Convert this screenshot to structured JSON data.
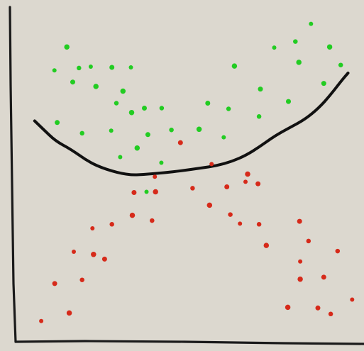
{
  "chart_data": {
    "type": "scatter",
    "title": "",
    "xlabel": "",
    "ylabel": "",
    "grid": false,
    "legend": "none",
    "xlim": [
      0,
      100
    ],
    "ylim": [
      0,
      100
    ],
    "colors": {
      "background": "#dcd8cf",
      "axes": "#1a1a1a",
      "boundary": "#111111",
      "class_a": "#22cc22",
      "class_b": "#d62a1a"
    },
    "series": [
      {
        "class": "class_a",
        "points": [
          [
            11.2,
            81.1
          ],
          [
            14.8,
            88.1
          ],
          [
            16.5,
            77.6
          ],
          [
            18.3,
            81.8
          ],
          [
            21.7,
            82.2
          ],
          [
            23.2,
            76.3
          ],
          [
            27.8,
            82.0
          ],
          [
            29.1,
            71.3
          ],
          [
            33.3,
            82.0
          ],
          [
            31.0,
            74.9
          ],
          [
            12.0,
            65.5
          ],
          [
            19.2,
            62.3
          ],
          [
            27.6,
            63.1
          ],
          [
            33.5,
            68.5
          ],
          [
            37.2,
            69.8
          ],
          [
            42.2,
            69.8
          ],
          [
            30.2,
            55.2
          ],
          [
            35.1,
            57.9
          ],
          [
            38.2,
            61.9
          ],
          [
            45.0,
            63.3
          ],
          [
            42.1,
            53.5
          ],
          [
            53.0,
            63.5
          ],
          [
            55.5,
            71.3
          ],
          [
            61.5,
            69.6
          ],
          [
            60.1,
            61.1
          ],
          [
            63.2,
            82.4
          ],
          [
            70.7,
            75.5
          ],
          [
            70.3,
            67.3
          ],
          [
            74.7,
            87.9
          ],
          [
            81.8,
            83.5
          ],
          [
            78.8,
            71.8
          ],
          [
            80.8,
            89.7
          ],
          [
            85.3,
            95.0
          ],
          [
            90.7,
            88.1
          ],
          [
            89.0,
            77.2
          ],
          [
            93.9,
            82.7
          ],
          [
            37.8,
            44.8
          ]
        ]
      },
      {
        "class": "class_b",
        "points": [
          [
            7.4,
            6.2
          ],
          [
            15.5,
            8.6
          ],
          [
            11.3,
            17.4
          ],
          [
            19.2,
            18.5
          ],
          [
            16.8,
            26.9
          ],
          [
            22.5,
            26.1
          ],
          [
            25.7,
            24.7
          ],
          [
            27.8,
            35.1
          ],
          [
            22.2,
            33.9
          ],
          [
            33.7,
            37.8
          ],
          [
            34.2,
            44.6
          ],
          [
            39.4,
            36.2
          ],
          [
            40.2,
            49.3
          ],
          [
            40.4,
            44.8
          ],
          [
            47.6,
            59.5
          ],
          [
            51.1,
            45.9
          ],
          [
            56.6,
            53.1
          ],
          [
            56.0,
            40.8
          ],
          [
            61.0,
            46.3
          ],
          [
            62.0,
            38.0
          ],
          [
            66.4,
            47.8
          ],
          [
            67.0,
            50.1
          ],
          [
            70.0,
            47.2
          ],
          [
            70.3,
            35.1
          ],
          [
            64.8,
            35.3
          ],
          [
            72.4,
            28.8
          ],
          [
            82.0,
            36.0
          ],
          [
            84.6,
            30.1
          ],
          [
            82.2,
            24.0
          ],
          [
            82.2,
            18.7
          ],
          [
            89.0,
            19.3
          ],
          [
            93.0,
            27.1
          ],
          [
            97.2,
            12.6
          ],
          [
            78.6,
            10.3
          ],
          [
            87.3,
            10.1
          ],
          [
            91.0,
            8.3
          ]
        ]
      }
    ],
    "boundary": [
      [
        5.5,
        66.0
      ],
      [
        8.0,
        63.5
      ],
      [
        11.5,
        60.0
      ],
      [
        16.0,
        57.5
      ],
      [
        21.0,
        53.8
      ],
      [
        26.0,
        51.5
      ],
      [
        32.5,
        49.8
      ],
      [
        37.5,
        50.0
      ],
      [
        42.8,
        50.5
      ],
      [
        48.0,
        51.1
      ],
      [
        53.5,
        51.9
      ],
      [
        58.0,
        52.6
      ],
      [
        62.5,
        53.9
      ],
      [
        66.5,
        55.7
      ],
      [
        70.5,
        58.3
      ],
      [
        74.7,
        61.4
      ],
      [
        79.0,
        63.9
      ],
      [
        83.5,
        66.4
      ],
      [
        87.5,
        69.8
      ],
      [
        90.8,
        73.6
      ],
      [
        94.1,
        78.0
      ],
      [
        96.0,
        80.3
      ]
    ]
  }
}
